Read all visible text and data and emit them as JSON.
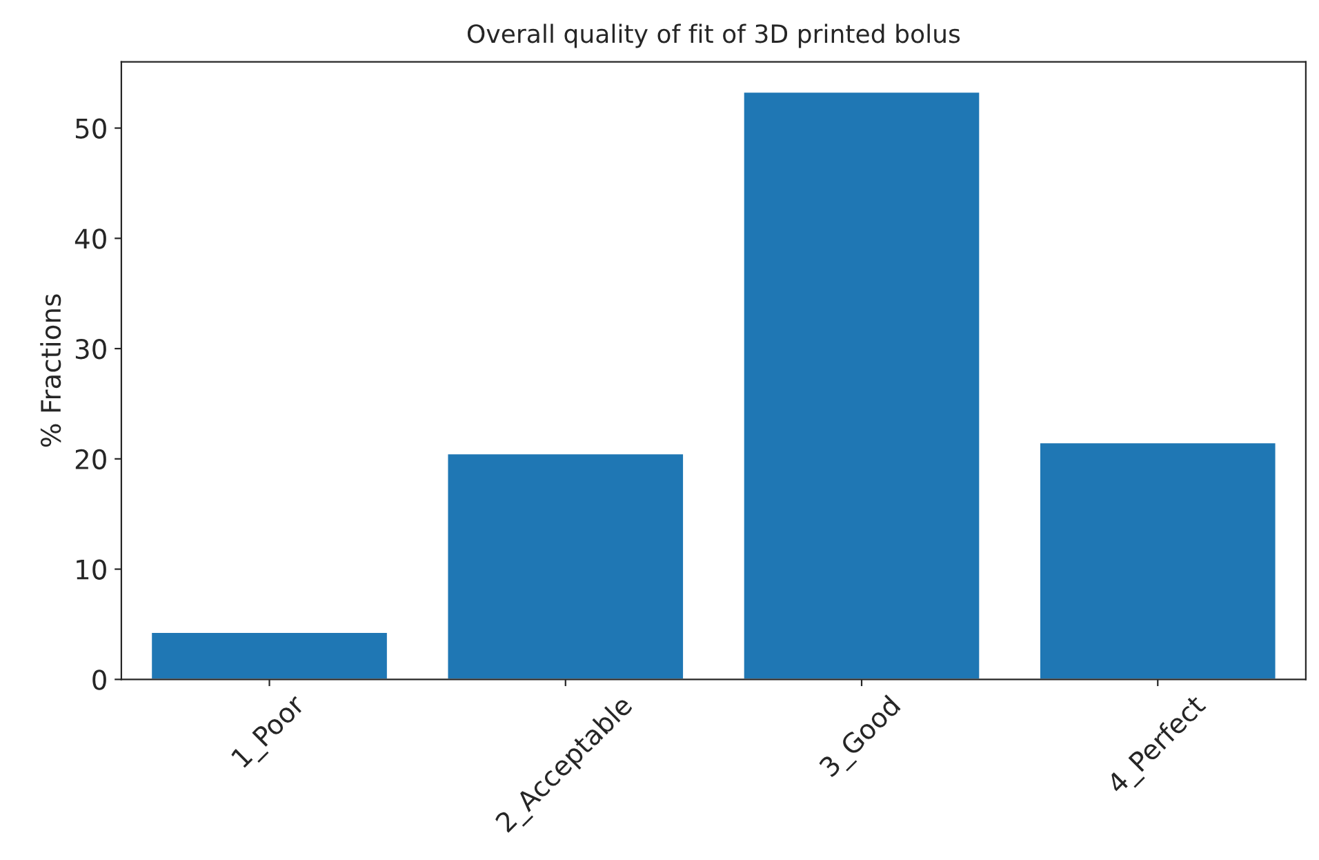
{
  "chart_data": {
    "type": "bar",
    "title": "Overall quality of fit of 3D printed bolus",
    "ylabel": "% Fractions",
    "categories": [
      "1_Poor",
      "2_Acceptable",
      "3_Good",
      "4_Perfect"
    ],
    "values": [
      4.3,
      20.5,
      53.3,
      21.5
    ],
    "color": "#1f77b4",
    "ylim": [
      0,
      56
    ],
    "yticks": [
      0,
      10,
      20,
      30,
      40,
      50
    ],
    "grid": false
  }
}
